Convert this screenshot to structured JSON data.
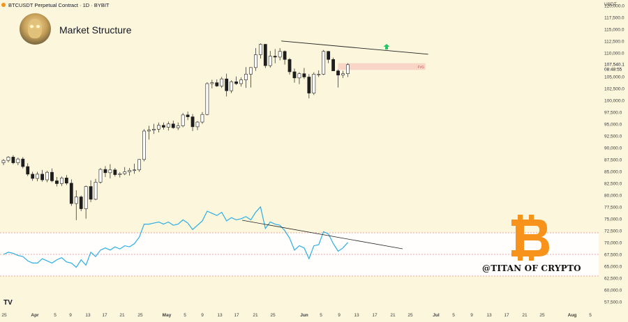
{
  "header": {
    "symbol_text": "BTCUSDT Perpetual Contract · 1D · BYBIT"
  },
  "title": "Market Structure",
  "currency_label": "USDT",
  "watermark": "@TITAN OF CRYPTO",
  "logo_text": "TV",
  "colors": {
    "background": "#fcf6dc",
    "candle_up_fill": "#ffffff",
    "candle_down_fill": "#1e1e1e",
    "rsi_line": "#2aaee6",
    "rsi_band": "#ffffff",
    "fvg_zone": "#f7c9c0",
    "arrow": "#27c46a",
    "bitcoin_logo": "#f7931a"
  },
  "chart_data": [
    {
      "type": "candlestick",
      "title": "BTCUSDT Perpetual Contract · 1D · BYBIT",
      "ylim": [
        56000,
        121000
      ],
      "y_ticks": [
        "57,500.0",
        "60,000.0",
        "62,500.0",
        "65,000.0",
        "67,500.0",
        "70,000.0",
        "72,500.0",
        "75,000.0",
        "77,500.0",
        "80,000.0",
        "82,500.0",
        "85,000.0",
        "87,500.0",
        "90,000.0",
        "92,500.0",
        "95,000.0",
        "97,500.0",
        "100,000.0",
        "102,500.0",
        "105,000.0",
        "107,540.1",
        "110,000.0",
        "112,500.0",
        "115,000.0",
        "117,500.0",
        "120,000.0"
      ],
      "price_label": "107,540.1",
      "countdown_label": "08:48:55",
      "x_ticks": [
        "25",
        "Apr",
        "5",
        "9",
        "13",
        "17",
        "21",
        "25",
        "May",
        "5",
        "9",
        "13",
        "17",
        "21",
        "25",
        "Jun",
        "5",
        "9",
        "13",
        "17",
        "21",
        "25",
        "Jul",
        "5",
        "9",
        "13",
        "17",
        "21",
        "25",
        "Aug",
        "5"
      ],
      "ohlc": [
        [
          86800,
          87600,
          86300,
          87300
        ],
        [
          87300,
          88200,
          86900,
          88000
        ],
        [
          88000,
          88400,
          86500,
          86800
        ],
        [
          86800,
          87900,
          86300,
          87600
        ],
        [
          87600,
          88000,
          85600,
          86000
        ],
        [
          86000,
          86700,
          84000,
          84400
        ],
        [
          84400,
          84900,
          83000,
          83500
        ],
        [
          83500,
          84900,
          82900,
          84400
        ],
        [
          84400,
          85300,
          82800,
          83200
        ],
        [
          83200,
          85100,
          82700,
          84800
        ],
        [
          84800,
          85600,
          82700,
          83000
        ],
        [
          83000,
          83800,
          81800,
          82400
        ],
        [
          82400,
          83900,
          81900,
          83600
        ],
        [
          83600,
          84200,
          82100,
          82500
        ],
        [
          82500,
          83300,
          77700,
          78200
        ],
        [
          78200,
          81000,
          74700,
          79600
        ],
        [
          79600,
          79900,
          76600,
          77100
        ],
        [
          77100,
          82000,
          75000,
          81800
        ],
        [
          81800,
          83100,
          78500,
          79100
        ],
        [
          79100,
          83400,
          78900,
          82700
        ],
        [
          82700,
          85700,
          82400,
          85400
        ],
        [
          85400,
          86100,
          83800,
          84700
        ],
        [
          84700,
          86500,
          83500,
          85300
        ],
        [
          85300,
          85700,
          83900,
          84300
        ],
        [
          84300,
          84800,
          83700,
          84500
        ],
        [
          84500,
          85900,
          84200,
          84900
        ],
        [
          84900,
          85700,
          84100,
          85200
        ],
        [
          85200,
          86600,
          84500,
          85300
        ],
        [
          85300,
          87600,
          84900,
          87500
        ],
        [
          87500,
          93900,
          87100,
          93500
        ],
        [
          93500,
          94600,
          91700,
          93700
        ],
        [
          93700,
          95000,
          92900,
          93900
        ],
        [
          93900,
          95300,
          93200,
          94700
        ],
        [
          94700,
          95300,
          93800,
          94300
        ],
        [
          94300,
          95500,
          93600,
          95000
        ],
        [
          95000,
          95700,
          94000,
          94200
        ],
        [
          94200,
          95300,
          93700,
          94600
        ],
        [
          94600,
          97300,
          94300,
          96900
        ],
        [
          96900,
          97600,
          95800,
          96500
        ],
        [
          96500,
          97100,
          93500,
          94400
        ],
        [
          94400,
          95600,
          93700,
          95400
        ],
        [
          95400,
          97500,
          95000,
          97000
        ],
        [
          97000,
          103800,
          96800,
          103500
        ],
        [
          103500,
          104300,
          102500,
          103700
        ],
        [
          103700,
          104400,
          102800,
          103000
        ],
        [
          103000,
          104900,
          102600,
          104500
        ],
        [
          104500,
          105600,
          100800,
          102000
        ],
        [
          102000,
          104200,
          101500,
          103900
        ],
        [
          103900,
          105000,
          103200,
          103500
        ],
        [
          103500,
          104800,
          102900,
          104300
        ],
        [
          104300,
          107000,
          102600,
          105500
        ],
        [
          105500,
          107000,
          102700,
          106900
        ],
        [
          106900,
          111000,
          106200,
          109600
        ],
        [
          109600,
          112000,
          108800,
          111800
        ],
        [
          111800,
          111900,
          106800,
          107300
        ],
        [
          107300,
          110400,
          106900,
          109300
        ],
        [
          109300,
          110800,
          107800,
          109100
        ],
        [
          109100,
          111000,
          108400,
          110300
        ],
        [
          110300,
          110500,
          107500,
          108600
        ],
        [
          108600,
          108900,
          105400,
          106000
        ],
        [
          106000,
          106700,
          103700,
          104700
        ],
        [
          104700,
          105900,
          103400,
          105600
        ],
        [
          105600,
          106800,
          104500,
          104900
        ],
        [
          104900,
          105500,
          100400,
          101500
        ],
        [
          101500,
          105900,
          101100,
          105500
        ],
        [
          105500,
          106300,
          104900,
          105500
        ],
        [
          105500,
          110600,
          105300,
          110300
        ],
        [
          110300,
          110400,
          107800,
          108600
        ],
        [
          108600,
          109000,
          106500,
          106200
        ],
        [
          106200,
          106500,
          102700,
          105300
        ],
        [
          105300,
          106200,
          104700,
          105600
        ],
        [
          105600,
          107800,
          104900,
          107500
        ]
      ],
      "annotations": [
        {
          "type": "trendline",
          "from": [
            58,
            112500
          ],
          "to": [
            87,
            109700
          ]
        },
        {
          "type": "zone",
          "label": "FVG",
          "from_index": 69,
          "to_index": 87,
          "top": 107800,
          "bottom": 106400
        },
        {
          "type": "arrow_up",
          "index": 80,
          "value": 111300
        }
      ]
    },
    {
      "type": "line",
      "title": "RSI",
      "ylim": [
        0,
        100
      ],
      "overbought": 70,
      "oversold": 30,
      "values": [
        50,
        52,
        51,
        49,
        48,
        44,
        42,
        42,
        46,
        44,
        42,
        45,
        47,
        43,
        42,
        38,
        45,
        40,
        52,
        48,
        54,
        56,
        54,
        57,
        55,
        58,
        57,
        60,
        66,
        78,
        78,
        79,
        80,
        78,
        80,
        77,
        78,
        82,
        79,
        73,
        77,
        81,
        90,
        88,
        86,
        89,
        81,
        84,
        82,
        83,
        85,
        82,
        89,
        94,
        74,
        80,
        78,
        77,
        72,
        65,
        54,
        58,
        56,
        46,
        58,
        59,
        71,
        69,
        60,
        53,
        56,
        61
      ]
    }
  ]
}
